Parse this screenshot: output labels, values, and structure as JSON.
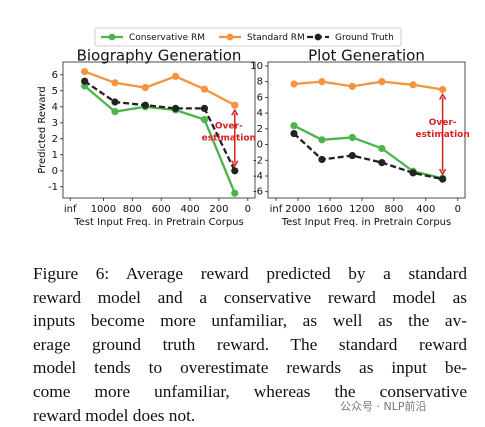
{
  "chart_data": [
    {
      "type": "line",
      "title": "Biography Generation",
      "y_label": "Predicted Reward",
      "x_label": "Test Input Freq. in Pretrain Corpus",
      "x": [
        1130,
        920,
        710,
        500,
        300,
        90
      ],
      "series": [
        {
          "name": "Conservative RM",
          "color": "#4cb54a",
          "dash": false,
          "values": [
            5.3,
            3.7,
            4.0,
            3.8,
            3.2,
            -1.4
          ]
        },
        {
          "name": "Standard RM",
          "color": "#f5933f",
          "dash": false,
          "values": [
            6.2,
            5.5,
            5.2,
            5.9,
            5.1,
            4.1
          ]
        },
        {
          "name": "Ground Truth",
          "color": "#222222",
          "dash": true,
          "values": [
            5.6,
            4.3,
            4.1,
            3.9,
            3.9,
            0.0
          ]
        }
      ],
      "xlim": [
        1280,
        -50
      ],
      "xticks": [
        {
          "value": 1230,
          "label": "inf"
        },
        1000,
        800,
        600,
        400,
        200,
        0
      ],
      "ylim": [
        -1.7,
        6.8
      ],
      "yticks": [
        -1,
        0,
        1,
        2,
        3,
        4,
        5,
        6
      ],
      "annotation": [
        "Over-",
        "estimation"
      ]
    },
    {
      "type": "line",
      "title": "Plot Generation",
      "x_label": "Test Input Freq. in Pretrain Corpus",
      "x": [
        2050,
        1700,
        1320,
        950,
        560,
        190
      ],
      "series": [
        {
          "name": "Conservative RM",
          "color": "#4cb54a",
          "dash": false,
          "values": [
            2.4,
            0.6,
            0.9,
            -0.5,
            -3.4,
            -4.3
          ]
        },
        {
          "name": "Standard RM",
          "color": "#f5933f",
          "dash": false,
          "values": [
            7.7,
            8.0,
            7.4,
            8.0,
            7.6,
            7.0
          ]
        },
        {
          "name": "Ground Truth",
          "color": "#222222",
          "dash": true,
          "values": [
            1.4,
            -1.9,
            -1.4,
            -2.3,
            -3.6,
            -4.4
          ]
        }
      ],
      "xlim": [
        2375,
        -90
      ],
      "xticks": [
        {
          "value": 2275,
          "label": "inf"
        },
        2000,
        1600,
        1200,
        800,
        400,
        0
      ],
      "ylim": [
        -6.8,
        10.5
      ],
      "yticks": [
        -6,
        -4,
        -2,
        0,
        2,
        4,
        6,
        8,
        10
      ],
      "annotation": [
        "Over-",
        "estimation"
      ]
    }
  ],
  "caption": [
    "Figure 6: Average reward predicted by a standard",
    "reward model and a conservative reward model as",
    "inputs become more unfamiliar, as well as the av-",
    "erage ground truth reward. The standard reward",
    "model tends to overestimate rewards as input be-",
    "come more unfamiliar, whereas the conservative",
    "reward model does not."
  ],
  "watermark": "公众号 · NLP前沿"
}
